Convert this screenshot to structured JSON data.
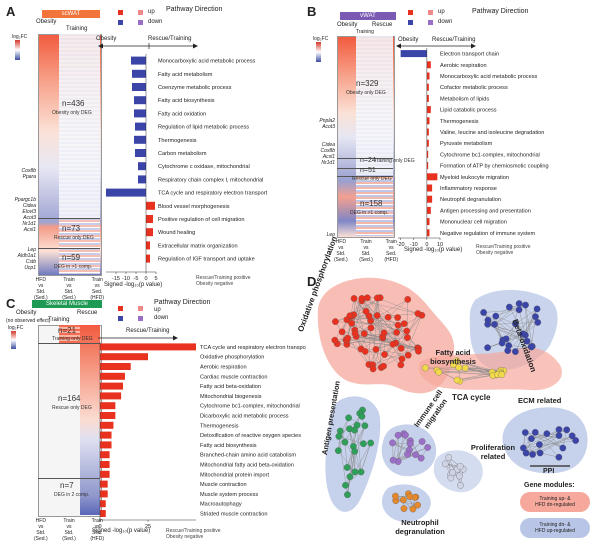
{
  "panels": {
    "A": {
      "label": "A",
      "tissue": "scWAT",
      "col_headers": [
        "Obesity",
        "Training"
      ],
      "direction_headers": [
        "Obesity",
        "Rescue/Training"
      ],
      "pathway_direction": "Pathway Direction",
      "up": "up",
      "down": "down",
      "logfc": "log₂FC",
      "groups": [
        {
          "text": "n=436",
          "sub": "Obesity only DEG"
        },
        {
          "text": "n=73",
          "sub": "Rescue only DEG"
        },
        {
          "text": "n=59",
          "sub": "DEG in >1 comp."
        }
      ],
      "genes_1": [
        "Cox8b",
        "Ppara"
      ],
      "genes_2": [
        "Ppargc1b",
        "Cidea",
        "Elovl3",
        "Acot3",
        "Nr1d1",
        "Acsl1"
      ],
      "genes_3": [
        "Lep",
        "Aldh1a1",
        "Cstb",
        "Ucp1"
      ],
      "col_labels": [
        [
          "HFD",
          "vs",
          "Std.",
          "(Sed.)"
        ],
        [
          "Train",
          "vs",
          "Std.",
          "(Sed.)"
        ],
        [
          "Train",
          "vs",
          "Sed.",
          "(HFD)"
        ]
      ],
      "xlabel": "Signed -log₁₀(p value)",
      "note": [
        "Rescue/Training positive",
        "Obesity negative"
      ]
    },
    "B": {
      "label": "B",
      "tissue": "vWAT",
      "col_headers": [
        "Obesity",
        "Rescue",
        "Training"
      ],
      "direction_headers": [
        "Obesity",
        "Rescue/Training"
      ],
      "pathway_direction": "Pathway Direction",
      "up": "up",
      "down": "down",
      "logfc": "log₂FC",
      "groups": [
        {
          "text": "n=329",
          "sub": "Obesity only DEG"
        },
        {
          "text": "n=24",
          "sub": "Training only DEG"
        },
        {
          "text": "n=51",
          "sub": "Rescue only DEG"
        },
        {
          "text": "n=158",
          "sub": "DEG in >1 comp."
        }
      ],
      "genes_1": [
        "Pnpla2",
        "Acot3"
      ],
      "genes_2": [
        "Cidea",
        "Cox8b",
        "Acsl1",
        "Nr1d1"
      ],
      "genes_3": [
        "Lep"
      ],
      "col_labels": [
        [
          "HFD",
          "vs",
          "Std.",
          "(Sed.)"
        ],
        [
          "Train",
          "vs",
          "Std.",
          "(Sed.)"
        ],
        [
          "Train",
          "vs",
          "Sed.",
          "(HFD)"
        ]
      ],
      "xlabel": "Signed -log₁₀(p value)",
      "note": [
        "Rescue/Training positive",
        "Obesity negative"
      ]
    },
    "C": {
      "label": "C",
      "tissue": "Skeletal Muscle",
      "col_headers": [
        "Obesity",
        "Rescue"
      ],
      "training_header": "Training",
      "no_effect": "(no observed effect)",
      "pathway_direction": "Pathway Direction",
      "up": "up",
      "down": "down",
      "logfc": "log₂FC",
      "groups": [
        {
          "text": "n=21",
          "sub": "Training only DEG"
        },
        {
          "text": "n=164",
          "sub": "Rescue only DEG"
        },
        {
          "text": "n=7",
          "sub": "DEG in 2 comp."
        }
      ],
      "col_labels": [
        [
          "HFD",
          "vs",
          "Std.",
          "(Sed.)"
        ],
        [
          "Train",
          "vs",
          "Std.",
          "(Sed.)"
        ],
        [
          "Train",
          "vs",
          "Sed.",
          "(HFD)"
        ]
      ],
      "direction_header": "Rescue/Training",
      "xlabel": "Signed -log₁₀(p value)",
      "note": [
        "Rescue/Training positive",
        "Obesity negative"
      ]
    },
    "D": {
      "label": "D",
      "clusters": [
        "Oxidative phosphorylation",
        "Fatty acid biosynthesis",
        "Beta-oxidation",
        "TCA cycle",
        "ECM related",
        "Immune cell migration",
        "Proliferation related",
        "Antigen presentation",
        "Neutrophil degranulation"
      ],
      "legend_ppi": "PPI",
      "legend_modules_title": "Gene modules:",
      "legend_mod1": [
        "Training up- &",
        "HFD dn-regulated"
      ],
      "legend_mod2": [
        "Training dn- &",
        "HFD up-regulated"
      ]
    }
  },
  "chart_data": [
    {
      "type": "bar",
      "panel": "A",
      "categories": [
        "Monocarboxylic acid metabolic process",
        "Fatty acid metabolism",
        "Coenzyme metabolic process",
        "Fatty acid biosynthesis",
        "Fatty acid oxidation",
        "Regulation of lipid metabolic process",
        "Thermogenesis",
        "Carbon metabolism",
        "Cytochrome c oxidase, mitochondrial",
        "Respiratory chain complex I, mitochondrial",
        "TCA cycle and respiratory electron transport",
        "Blood vessel morphogenesis",
        "Positive regulation of cell migration",
        "Wound healing",
        "Extracellular matrix organization",
        "Regulation of IGF transport and uptake"
      ],
      "values": [
        -7.5,
        -7,
        -7,
        -6,
        -6,
        -5.5,
        -6,
        -5.5,
        -4,
        -4,
        -20,
        4.5,
        3.5,
        3.5,
        2,
        2
      ],
      "xlim": [
        -20,
        5
      ],
      "xticks": [
        "-15",
        "-10",
        "-5",
        "0",
        "5"
      ],
      "xlabel": "Signed -log₁₀(p value)"
    },
    {
      "type": "bar",
      "panel": "B",
      "categories": [
        "Electron transport chain",
        "Aerobic respiration",
        "Monocarboxylic acid metabolic process",
        "Cofactor metabolic process",
        "Metabolism of lipids",
        "Lipid catabolic process",
        "Thermogenesis",
        "Valine, leucine and isoleucine degradation",
        "Pyruvate metabolism",
        "Cytochrome bc1-complex, mitochondrial",
        "Formation of ATP by chemiosmotic coupling",
        "Myeloid leukocyte migration",
        "Inflammatory response",
        "Neutrophil degranulation",
        "Antigen processing and presentation",
        "Mononuclear cell migration",
        "Negative regulation of immune system"
      ],
      "values": [
        -20,
        3,
        2,
        1.5,
        1.5,
        3,
        2,
        1.5,
        1.5,
        1,
        1,
        8,
        4,
        4,
        3,
        2,
        2
      ],
      "xlim": [
        -22,
        10
      ],
      "xticks": [
        "-20",
        "-10",
        "0",
        "10"
      ],
      "xlabel": "Signed -log₁₀(p value)"
    },
    {
      "type": "bar",
      "panel": "C",
      "categories": [
        "TCA cycle and respiratory electron transport",
        "Oxidative phosphorylation",
        "Aerobic respiration",
        "Cardiac muscle contraction",
        "Fatty acid beta-oxidation",
        "Mitochondrial biogenesis",
        "Cytochrome bc1-complex, mitochondrial",
        "Dicarboxylic acid metabolic process",
        "Thermogenesis",
        "Detoxification of reactive oxygen species",
        "Fatty acid biosynthesis",
        "Branched-chain amino acid catabolism",
        "Mitochondrial fatty acid beta-oxidation",
        "Mitochondrial protein import",
        "Muscle contraction",
        "Muscle system process",
        "Macroautophagy",
        "Striated muscle contraction"
      ],
      "values": [
        50,
        25,
        16,
        13,
        12,
        11,
        8,
        8,
        7,
        6,
        6,
        5,
        5,
        5,
        4,
        4,
        3,
        3
      ],
      "xlim": [
        0,
        50
      ],
      "xticks": [
        "0",
        "25"
      ],
      "xlabel": "Signed -log₁₀(p value)"
    }
  ],
  "colors": {
    "red": "#e8321f",
    "blue": "#3b45a8",
    "green": "#2f9e58",
    "purple": "#9b6fc7",
    "bubble_red": "#f6a89c",
    "bubble_blue": "#b8c5e6"
  }
}
